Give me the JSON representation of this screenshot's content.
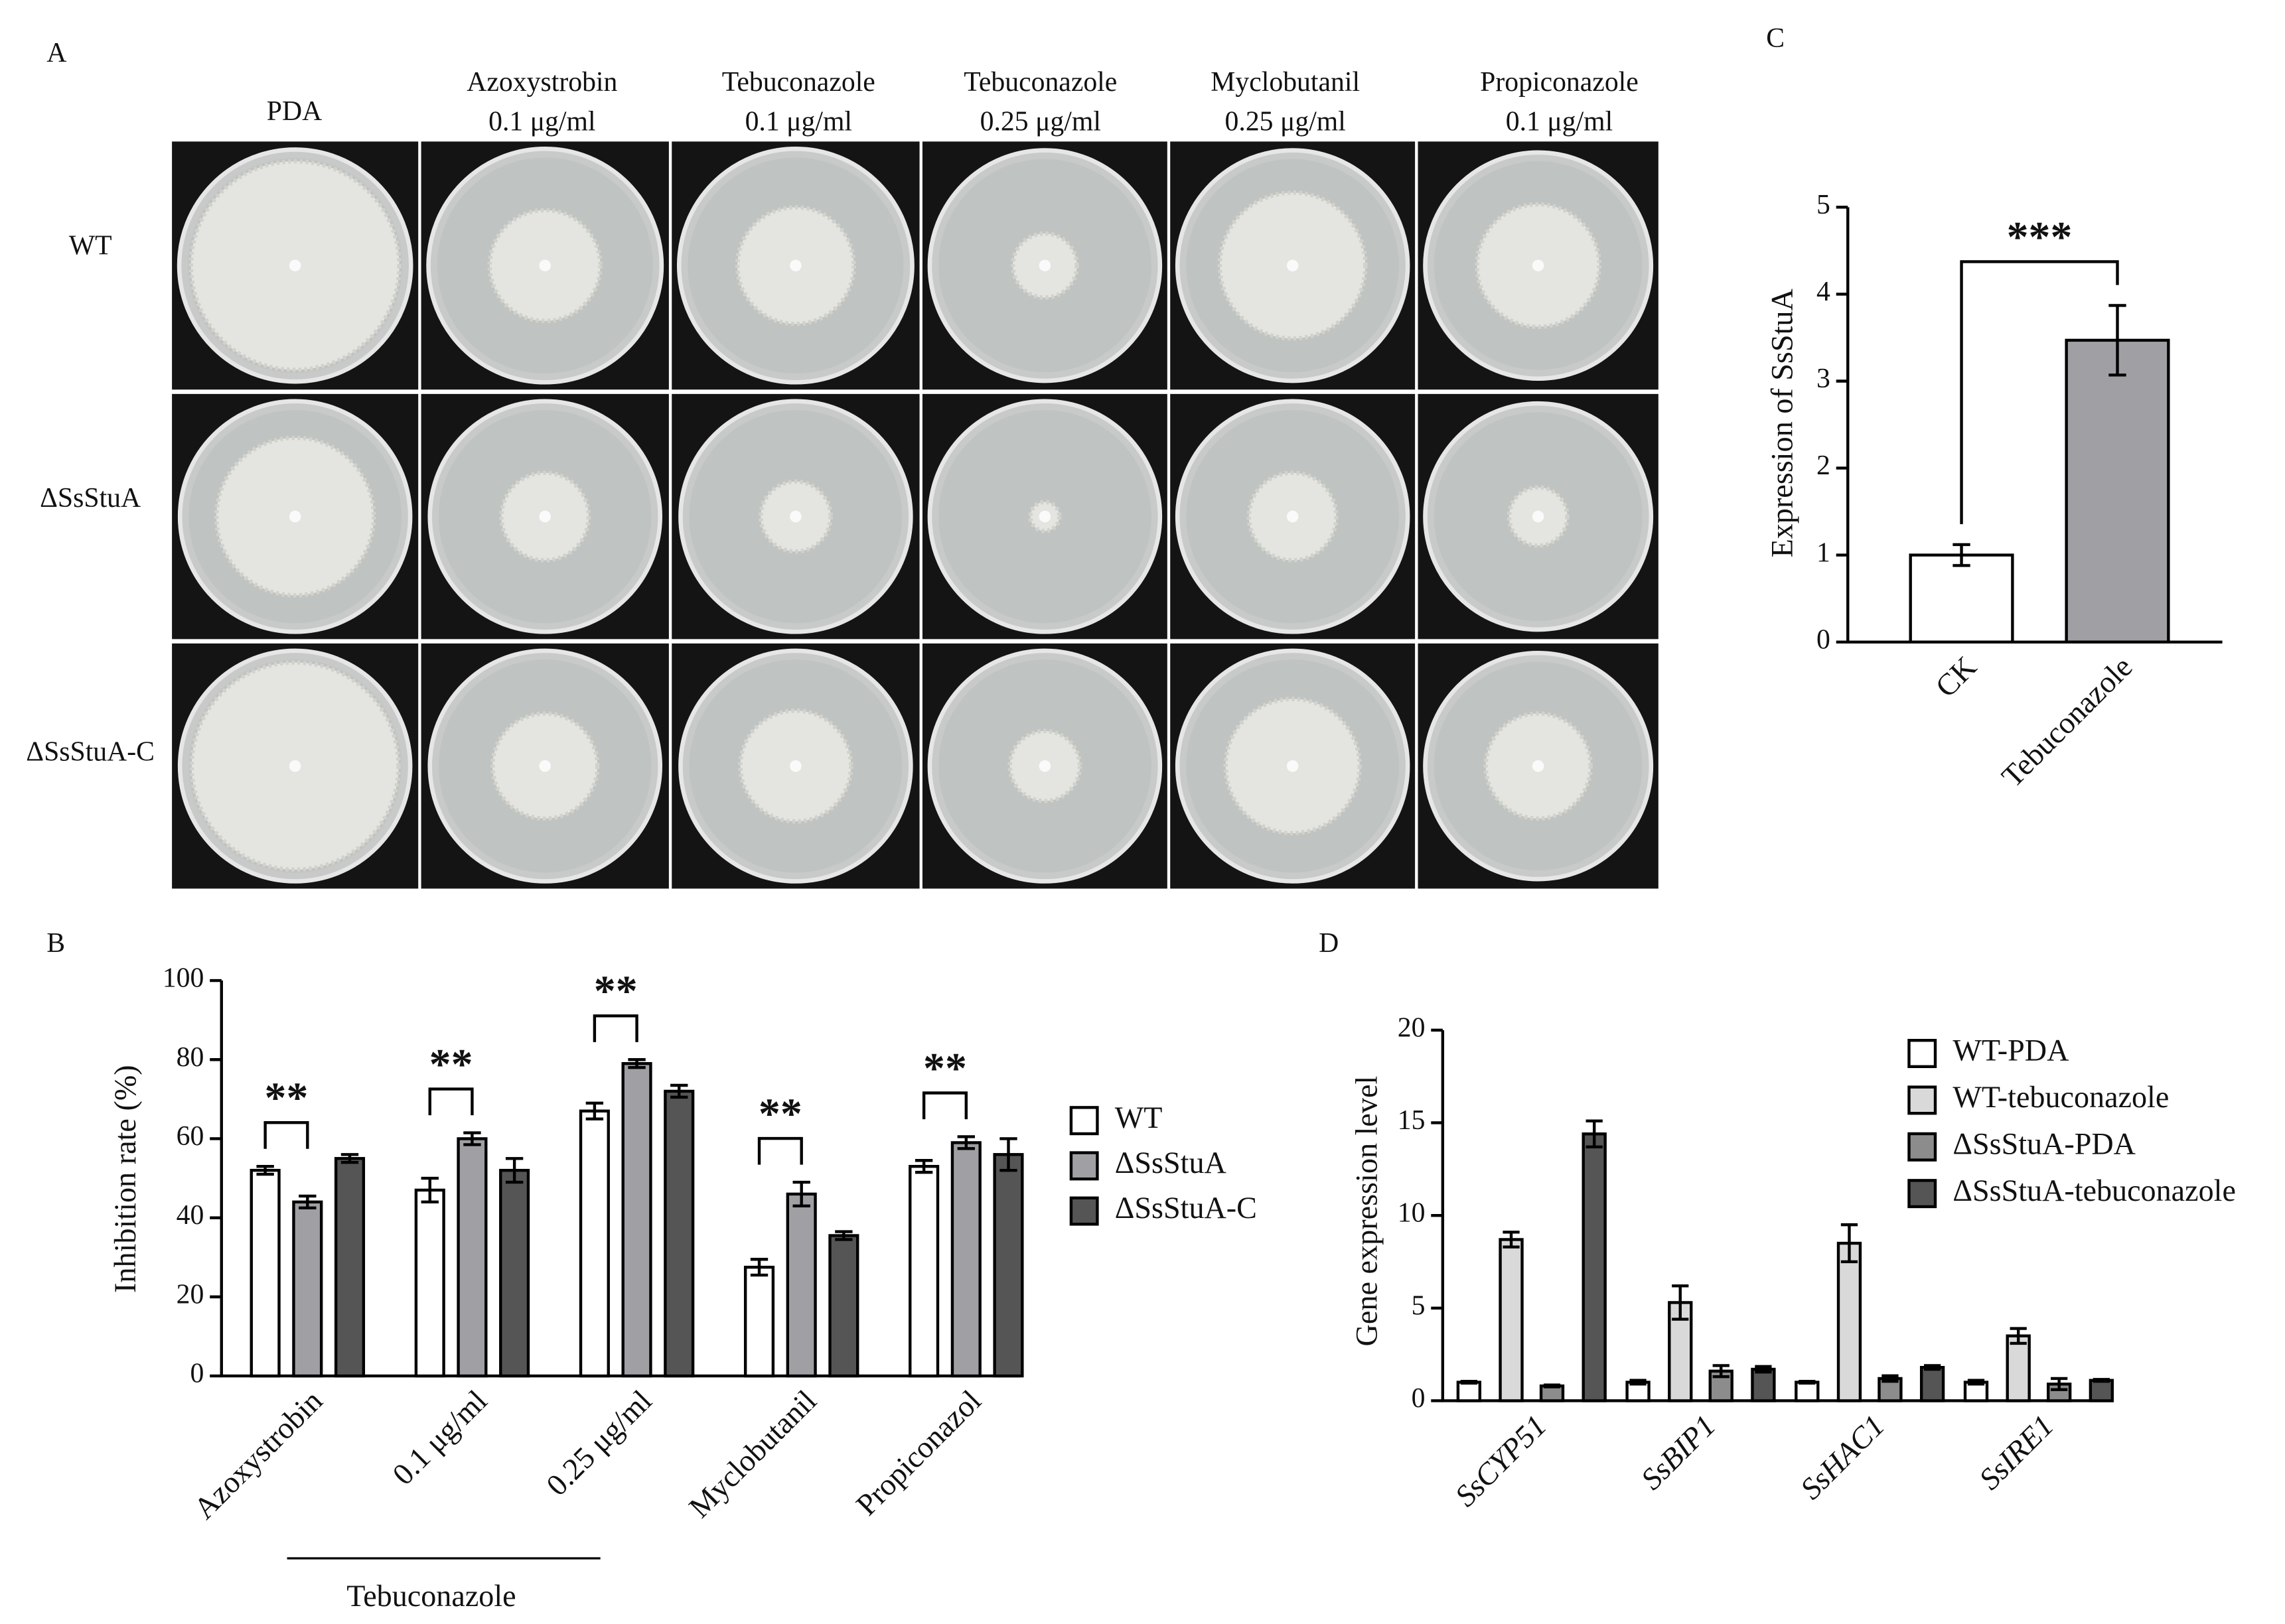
{
  "photo_panel": {
    "label": "A",
    "columns": [
      {
        "line1": "PDA"
      },
      {
        "line1": "Azoxystrobin",
        "line2": "0.1 μg/ml"
      },
      {
        "line1": "Tebuconazole",
        "line2": "0.1 μg/ml"
      },
      {
        "line1": "Tebuconazole",
        "line2": "0.25 μg/ml"
      },
      {
        "line1": "Myclobutanil",
        "line2": "0.25 μg/ml"
      },
      {
        "line1": "Propiconazole",
        "line2": "0.1 μg/ml"
      }
    ],
    "rows": [
      "WT",
      "ΔSsStuA",
      "ΔSsStuA-C"
    ]
  },
  "chart_data": [
    {
      "type": "bar",
      "panel_label": "B",
      "y_label": "Inhibition rate (%)",
      "categories": [
        "Azoxystrobin",
        "0.1 μg/ml",
        "0.25 μg/ml",
        "Myclobutanil",
        "Propiconazol"
      ],
      "group_label": "Tebuconazole",
      "series": [
        {
          "name": "WT",
          "color": "#ffffff",
          "values": [
            52,
            47,
            67,
            27.5,
            53
          ],
          "errors": [
            1,
            3,
            2,
            2,
            1.5
          ]
        },
        {
          "name": "ΔSsStuA",
          "color": "#a0a0a4",
          "values": [
            44,
            60,
            79,
            46,
            59
          ],
          "errors": [
            1.5,
            1.5,
            1,
            3,
            1.5
          ]
        },
        {
          "name": "ΔSsStuA-C",
          "color": "#555555",
          "values": [
            55,
            52,
            72,
            35.5,
            56
          ],
          "errors": [
            1,
            3,
            1.5,
            1,
            4
          ]
        }
      ],
      "significance": [
        "**",
        "**",
        "**",
        "**",
        "**"
      ],
      "ylim": [
        0,
        100
      ],
      "yticks": [
        0,
        20,
        40,
        60,
        80,
        100
      ]
    },
    {
      "type": "bar",
      "panel_label": "C",
      "y_label": "Expression of SsStuA",
      "categories": [
        "CK",
        "Tebuconazole"
      ],
      "values": [
        1,
        3.47
      ],
      "errors": [
        0.12,
        0.4
      ],
      "colors": [
        "#ffffff",
        "#a0a0a4"
      ],
      "significance": "***",
      "ylim": [
        0,
        5
      ],
      "yticks": [
        0,
        1,
        2,
        3,
        4,
        5
      ]
    },
    {
      "type": "bar",
      "panel_label": "D",
      "y_label": "Gene expression level",
      "categories": [
        "SsCYP51",
        "SsBIP1",
        "SsHAC1",
        "SsIRE1"
      ],
      "series": [
        {
          "name": "WT-PDA",
          "color": "#ffffff",
          "values": [
            1,
            1,
            1,
            1
          ],
          "errors": [
            0.05,
            0.1,
            0.05,
            0.1
          ]
        },
        {
          "name": "WT-tebuconazole",
          "color": "#d9d9d9",
          "values": [
            8.7,
            5.3,
            8.5,
            3.5
          ],
          "errors": [
            0.4,
            0.9,
            1,
            0.4
          ]
        },
        {
          "name": "ΔSsStuA-PDA",
          "color": "#8c8c8c",
          "values": [
            0.8,
            1.6,
            1.2,
            0.9
          ],
          "errors": [
            0.05,
            0.3,
            0.15,
            0.3
          ]
        },
        {
          "name": "ΔSsStuA-tebuconazole",
          "color": "#555555",
          "values": [
            14.4,
            1.7,
            1.8,
            1.1
          ],
          "errors": [
            0.7,
            0.15,
            0.1,
            0.05
          ]
        }
      ],
      "ylim": [
        0,
        20
      ],
      "yticks": [
        0,
        5,
        10,
        15,
        20
      ]
    }
  ]
}
